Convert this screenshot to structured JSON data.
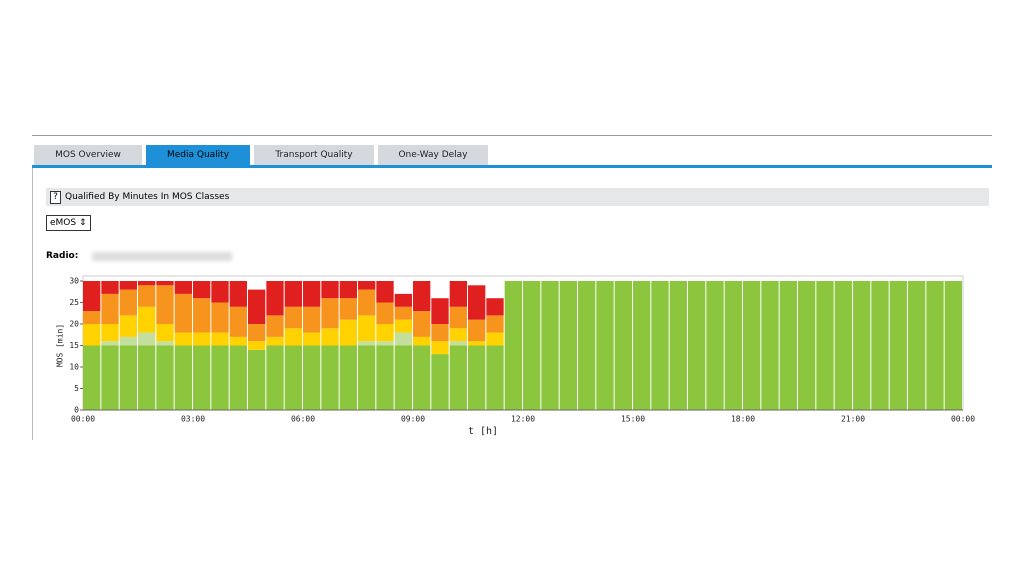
{
  "tabs": [
    "MOS Overview",
    "Media Quality",
    "Transport Quality",
    "One-Way Delay"
  ],
  "section": {
    "help_icon": "?",
    "title": "Qualified By Minutes In MOS Classes"
  },
  "select": {
    "value": "eMOS"
  },
  "radio": {
    "label": "Radio:"
  },
  "chart_data": {
    "type": "stacked-bar",
    "y_label": "MOS [min]",
    "x_label": "t [h]",
    "ylim": [
      0,
      30
    ],
    "yticks": [
      0,
      5,
      10,
      15,
      20,
      25,
      30
    ],
    "xticks": [
      "00:00",
      "03:00",
      "06:00",
      "09:00",
      "12:00",
      "15:00",
      "18:00",
      "21:00",
      "00:00"
    ],
    "series": [
      {
        "color": "#8cc63f",
        "values": [
          15,
          15,
          15,
          15,
          15,
          15,
          15,
          15,
          15,
          14,
          15,
          15,
          15,
          15,
          15,
          15,
          15,
          15,
          15,
          13,
          15,
          15,
          15,
          30,
          30,
          30,
          30,
          30,
          30,
          30,
          30,
          30,
          30,
          30,
          30,
          30,
          30,
          30,
          30,
          30,
          30,
          30,
          30,
          30,
          30,
          30,
          30,
          30
        ]
      },
      {
        "color": "#c4df9b",
        "values": [
          0,
          1,
          2,
          3,
          1,
          0,
          0,
          0,
          0,
          0,
          0,
          0,
          0,
          0,
          0,
          1,
          1,
          3,
          0,
          0,
          1,
          0,
          0,
          0,
          0,
          0,
          0,
          0,
          0,
          0,
          0,
          0,
          0,
          0,
          0,
          0,
          0,
          0,
          0,
          0,
          0,
          0,
          0,
          0,
          0,
          0,
          0,
          0
        ]
      },
      {
        "color": "#ffd200",
        "values": [
          5,
          4,
          5,
          6,
          4,
          3,
          3,
          3,
          2,
          2,
          2,
          4,
          3,
          4,
          6,
          6,
          4,
          3,
          2,
          3,
          3,
          1,
          3,
          0,
          0,
          0,
          0,
          0,
          0,
          0,
          0,
          0,
          0,
          0,
          0,
          0,
          0,
          0,
          0,
          0,
          0,
          0,
          0,
          0,
          0,
          0,
          0,
          0
        ]
      },
      {
        "color": "#f7941d",
        "values": [
          3,
          7,
          6,
          5,
          9,
          9,
          8,
          7,
          7,
          4,
          5,
          5,
          6,
          7,
          5,
          6,
          5,
          3,
          6,
          4,
          5,
          5,
          4,
          0,
          0,
          0,
          0,
          0,
          0,
          0,
          0,
          0,
          0,
          0,
          0,
          0,
          0,
          0,
          0,
          0,
          0,
          0,
          0,
          0,
          0,
          0,
          0,
          0
        ]
      },
      {
        "color": "#e0201f",
        "values": [
          7,
          3,
          2,
          1,
          1,
          3,
          4,
          5,
          6,
          8,
          8,
          6,
          6,
          4,
          4,
          2,
          5,
          3,
          7,
          6,
          6,
          8,
          4,
          0,
          0,
          0,
          0,
          0,
          0,
          0,
          0,
          0,
          0,
          0,
          0,
          0,
          0,
          0,
          0,
          0,
          0,
          0,
          0,
          0,
          0,
          0,
          0,
          0
        ]
      }
    ]
  }
}
